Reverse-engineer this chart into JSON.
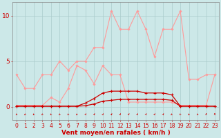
{
  "background_color": "#cce8e8",
  "grid_color": "#aacccc",
  "x_values": [
    0,
    1,
    2,
    3,
    4,
    5,
    6,
    7,
    8,
    9,
    10,
    11,
    12,
    13,
    14,
    15,
    16,
    17,
    18,
    19,
    20,
    21,
    22,
    23
  ],
  "x_labels": [
    "0",
    "1",
    "2",
    "3",
    "4",
    "5",
    "6",
    "7",
    "8",
    "9",
    "10",
    "11",
    "12",
    "13",
    "14",
    "15",
    "16",
    "17",
    "18",
    "19",
    "20",
    "21",
    "22",
    "23"
  ],
  "xlabel": "Vent moyen/en rafales ( km/h )",
  "yticks": [
    0,
    5,
    10
  ],
  "ylim": [
    -1.5,
    11.5
  ],
  "xlim": [
    -0.5,
    23.5
  ],
  "line_pink1_color": "#ff9999",
  "line_pink1_y": [
    3.5,
    2.0,
    2.0,
    3.5,
    3.5,
    5.0,
    4.0,
    5.0,
    5.0,
    6.5,
    6.5,
    10.5,
    8.5,
    8.5,
    10.5,
    8.5,
    5.5,
    8.5,
    8.5,
    10.5,
    3.0,
    3.0,
    3.5,
    3.5
  ],
  "line_pink2_color": "#ff9999",
  "line_pink2_y": [
    0.15,
    0.15,
    0.15,
    0.15,
    1.0,
    0.5,
    2.0,
    4.5,
    4.0,
    2.5,
    4.5,
    3.5,
    3.5,
    0.5,
    0.5,
    0.5,
    0.5,
    0.5,
    0.5,
    0.15,
    0.15,
    0.15,
    0.15,
    3.5
  ],
  "line_red1_color": "#cc0000",
  "line_red1_y": [
    0.05,
    0.05,
    0.05,
    0.05,
    0.05,
    0.05,
    0.05,
    0.05,
    0.4,
    0.9,
    1.5,
    1.7,
    1.7,
    1.7,
    1.7,
    1.5,
    1.5,
    1.5,
    1.3,
    0.05,
    0.05,
    0.05,
    0.05,
    0.05
  ],
  "line_red2_color": "#cc0000",
  "line_red2_y": [
    0.05,
    0.05,
    0.05,
    0.05,
    0.05,
    0.05,
    0.05,
    0.05,
    0.1,
    0.3,
    0.6,
    0.7,
    0.8,
    0.8,
    0.8,
    0.8,
    0.8,
    0.8,
    0.7,
    0.05,
    0.05,
    0.05,
    0.05,
    0.05
  ],
  "arrow_angles_deg": [
    225,
    225,
    225,
    225,
    225,
    225,
    225,
    225,
    45,
    45,
    45,
    45,
    45,
    45,
    45,
    45,
    45,
    45,
    225,
    225,
    225,
    225,
    90,
    90
  ],
  "tick_fontsize": 5.5,
  "label_fontsize": 6.5,
  "text_color": "#cc0000",
  "arrow_color": "#cc0000"
}
